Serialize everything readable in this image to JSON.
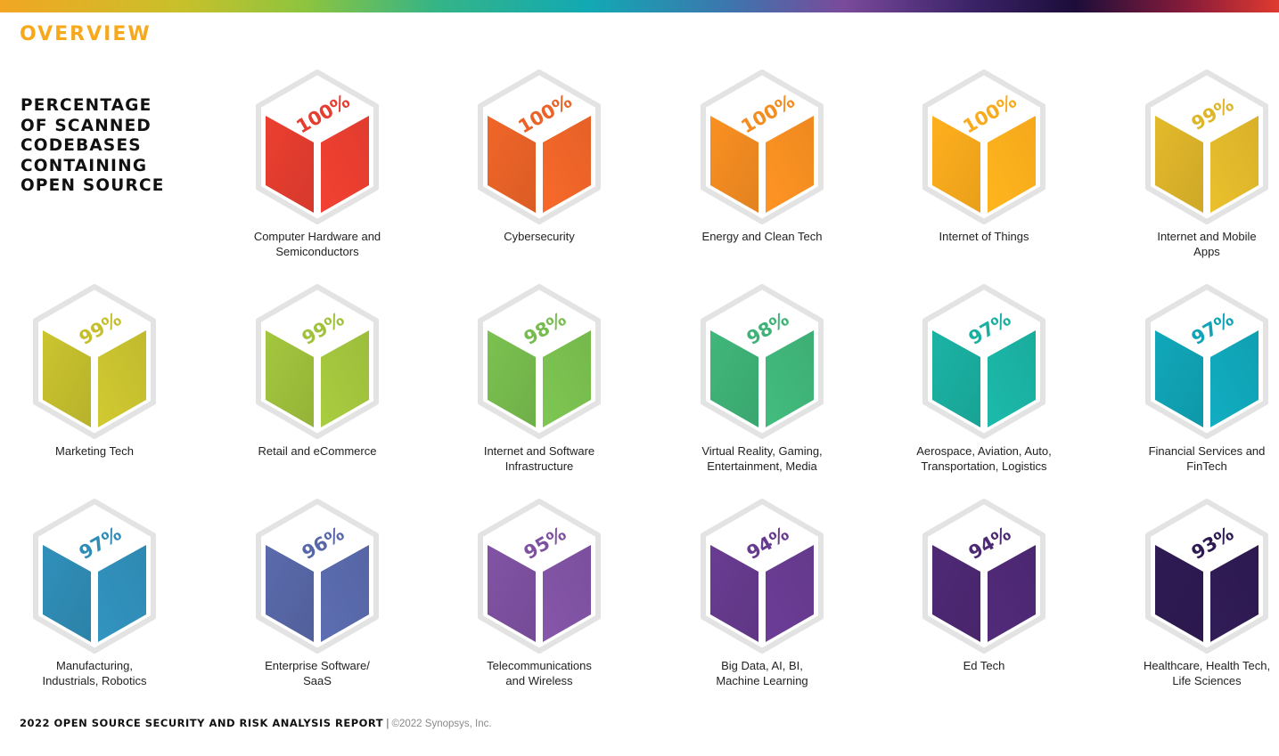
{
  "header": {
    "section_title": "OVERVIEW"
  },
  "chart_data": {
    "type": "bar",
    "title": "PERCENTAGE\nOF SCANNED\nCODEBASES\nCONTAINING\nOPEN SOURCE",
    "categories": [
      "Computer Hardware and\nSemiconductors",
      "Cybersecurity",
      "Energy and Clean Tech",
      "Internet of Things",
      "Internet and Mobile\nApps",
      "Marketing Tech",
      "Retail and eCommerce",
      "Internet and Software\nInfrastructure",
      "Virtual Reality, Gaming,\nEntertainment, Media",
      "Aerospace, Aviation, Auto,\nTransportation, Logistics",
      "Financial Services and\nFinTech",
      "Manufacturing,\nIndustrials, Robotics",
      "Enterprise Software/\nSaaS",
      "Telecommunications\nand Wireless",
      "Big Data, AI, BI,\nMachine Learning",
      "Ed Tech",
      "Healthcare, Health Tech,\nLife Sciences"
    ],
    "values": [
      100,
      100,
      100,
      100,
      99,
      99,
      99,
      98,
      98,
      97,
      97,
      97,
      96,
      95,
      94,
      94,
      93
    ],
    "value_labels": [
      "100%",
      "100%",
      "100%",
      "100%",
      "99%",
      "99%",
      "99%",
      "98%",
      "98%",
      "97%",
      "97%",
      "97%",
      "96%",
      "95%",
      "94%",
      "94%",
      "93%"
    ],
    "colors": [
      "#e53d2f",
      "#ea6328",
      "#f38c21",
      "#f9ab1c",
      "#ddb52a",
      "#c5bf2e",
      "#9fc13c",
      "#77bc4e",
      "#3eb277",
      "#1aafa0",
      "#10a3b6",
      "#2f8cb5",
      "#5767a7",
      "#7e51a0",
      "#663a8e",
      "#4d2873",
      "#2e1a52"
    ]
  },
  "footer": {
    "report_title": "2022 OPEN SOURCE SECURITY AND RISK ANALYSIS REPORT",
    "separator": " | ",
    "copyright": "©2022 Synopsys, Inc."
  }
}
